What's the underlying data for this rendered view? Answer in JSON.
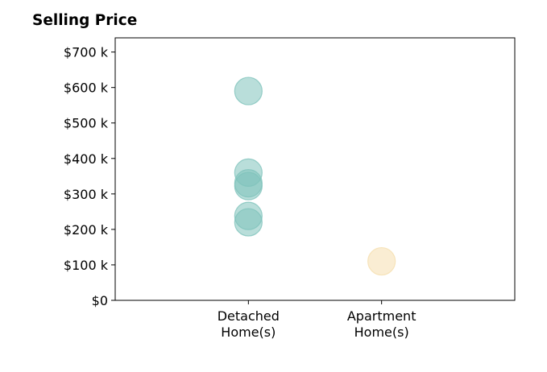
{
  "chart_data": {
    "type": "scatter",
    "title": "Selling Price",
    "xlabel": "",
    "ylabel": "",
    "categories": [
      [
        "Detached",
        "Home(s)"
      ],
      [
        "Apartment",
        "Home(s)"
      ]
    ],
    "xlim": [
      0,
      3
    ],
    "ylim": [
      0,
      740000
    ],
    "yticks": [
      0,
      100000,
      200000,
      300000,
      400000,
      500000,
      600000,
      700000
    ],
    "ytick_labels": [
      "$0",
      "$100 k",
      "$200 k",
      "$300 k",
      "$400 k",
      "$500 k",
      "$600 k",
      "$700 k"
    ],
    "grid": false,
    "series": [
      {
        "category": "Detached Home(s)",
        "color": "#80c3bb",
        "values": [
          590000,
          360000,
          330000,
          322000,
          238000,
          220000
        ]
      },
      {
        "category": "Apartment Home(s)",
        "color": "#f5dfae",
        "values": [
          110000
        ]
      }
    ]
  }
}
